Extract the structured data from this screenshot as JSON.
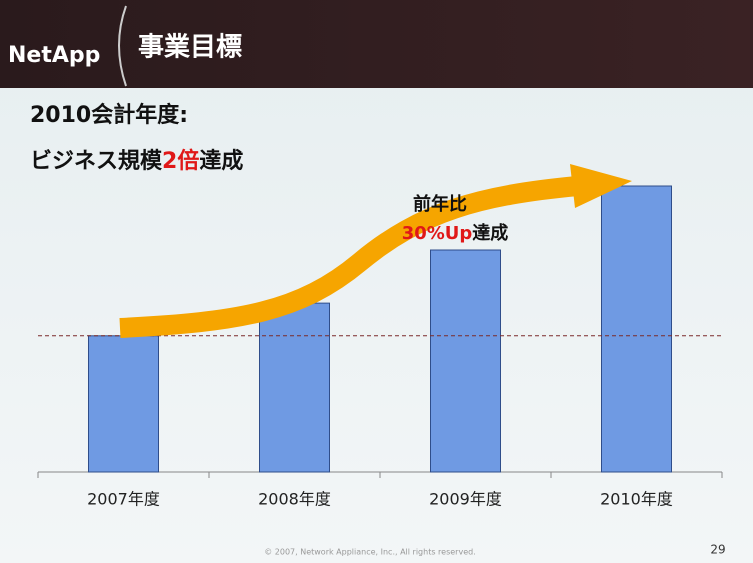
{
  "header": {
    "logo": "NetApp",
    "title": "事業目標"
  },
  "heading": {
    "line1": "2010会計年度:",
    "line2_prefix": "ビジネス規模",
    "line2_highlight": "2倍",
    "line2_suffix": "達成"
  },
  "chart_data": {
    "type": "bar",
    "categories": [
      "2007年度",
      "2008年度",
      "2009年度",
      "2010年度"
    ],
    "values": [
      100,
      124,
      163,
      210
    ],
    "color": "#6f9ae3",
    "ylim": [
      0,
      210
    ],
    "annotation": {
      "line1": "前年比",
      "highlight": "30%Up",
      "suffix": "達成"
    }
  },
  "footer": {
    "copyright": "© 2007, Network Appliance, Inc., All rights reserved.",
    "page": "29"
  }
}
